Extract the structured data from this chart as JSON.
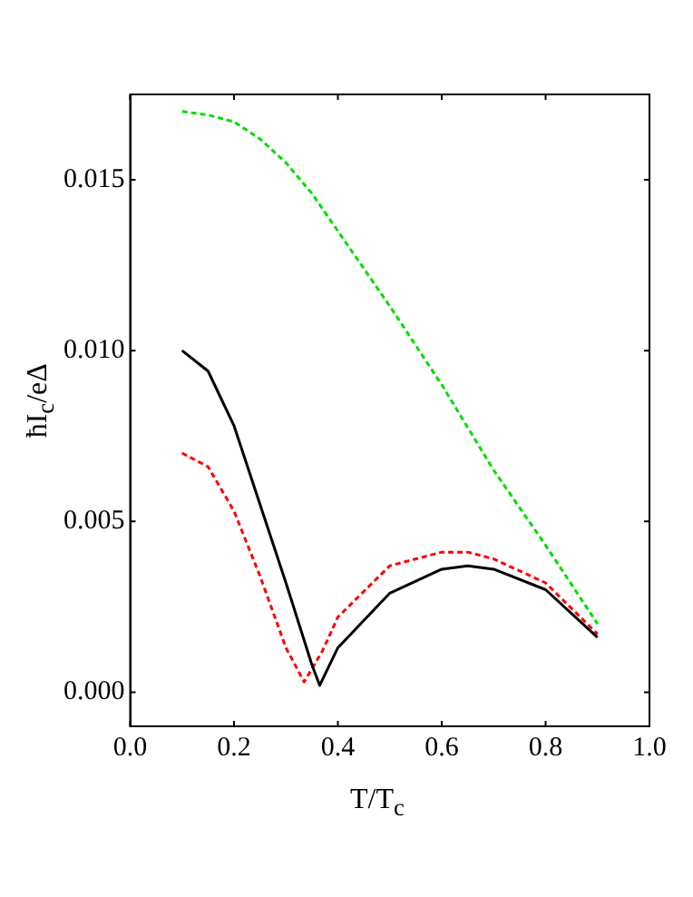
{
  "chart_data": {
    "type": "line",
    "xlabel": "T/T$_{c}$",
    "ylabel": "ħI$_{c}$/eΔ",
    "xlim": [
      0,
      1
    ],
    "xticks": [
      {
        "value": 0,
        "label": "0.0"
      },
      {
        "value": 0.2,
        "label": "0.2"
      },
      {
        "value": 0.4,
        "label": "0.4"
      },
      {
        "value": 0.6,
        "label": "0.6"
      },
      {
        "value": 0.8,
        "label": "0.8"
      },
      {
        "value": 1,
        "label": "1.0"
      }
    ],
    "ylim": [
      -0.001,
      0.0175
    ],
    "yticks": [
      {
        "value": 0,
        "label": "0.000"
      },
      {
        "value": 0.005,
        "label": "0.005"
      },
      {
        "value": 0.01,
        "label": "0.010"
      },
      {
        "value": 0.015,
        "label": "0.015"
      }
    ],
    "grid": false,
    "legend": false,
    "marker": "none",
    "series": [
      {
        "color": "#00dd00",
        "line_style": "dashed",
        "x": [
          0.1,
          0.15,
          0.2,
          0.25,
          0.3,
          0.35,
          0.4,
          0.5,
          0.6,
          0.7,
          0.8,
          0.9
        ],
        "values": [
          0.017,
          0.0169,
          0.0167,
          0.0162,
          0.0155,
          0.0146,
          0.0135,
          0.0113,
          0.009,
          0.0065,
          0.0043,
          0.002
        ]
      },
      {
        "color": "#000000",
        "line_style": "solid",
        "x": [
          0.1,
          0.15,
          0.2,
          0.25,
          0.3,
          0.35,
          0.365,
          0.4,
          0.5,
          0.6,
          0.65,
          0.7,
          0.8,
          0.9
        ],
        "values": [
          0.01,
          0.0094,
          0.0078,
          0.0055,
          0.0032,
          0.0008,
          0.0002,
          0.0013,
          0.0029,
          0.0036,
          0.0037,
          0.0036,
          0.003,
          0.0016
        ]
      },
      {
        "color": "#ff0000",
        "line_style": "dashed",
        "x": [
          0.1,
          0.15,
          0.2,
          0.25,
          0.3,
          0.335,
          0.37,
          0.4,
          0.5,
          0.6,
          0.65,
          0.7,
          0.8,
          0.9
        ],
        "values": [
          0.007,
          0.0066,
          0.0053,
          0.0034,
          0.0013,
          0.0003,
          0.0012,
          0.0022,
          0.0037,
          0.0041,
          0.0041,
          0.0039,
          0.0032,
          0.0017
        ]
      }
    ]
  }
}
